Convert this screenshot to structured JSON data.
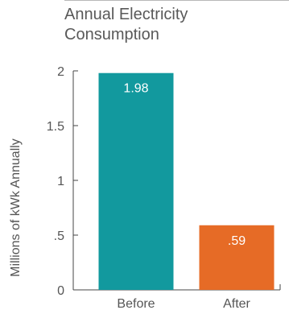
{
  "chart_data": {
    "type": "bar",
    "title": "Annual Electricity Consumption",
    "ylabel": "Millions of kWk Annually",
    "categories": [
      "Before",
      "After"
    ],
    "values": [
      1.98,
      0.59
    ],
    "value_labels": [
      "1.98",
      ".59"
    ],
    "ylim": [
      0,
      2
    ],
    "yticks": [
      0,
      0.5,
      1,
      1.5,
      2
    ],
    "ytick_labels": [
      "0",
      ".5",
      "1",
      "1.5",
      "2"
    ],
    "colors": [
      "#12999E",
      "#E66B26"
    ],
    "grid": false,
    "legend": "none"
  }
}
